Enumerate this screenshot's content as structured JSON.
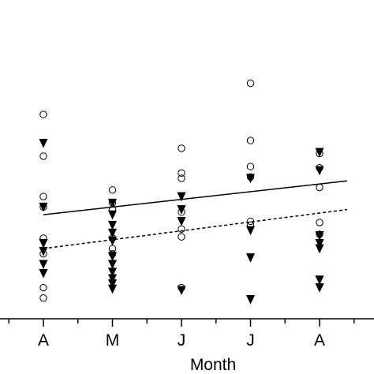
{
  "chart_data": {
    "type": "scatter",
    "title": "",
    "xlabel": "Month",
    "ylabel": "",
    "categories": [
      "A",
      "M",
      "J",
      "J",
      "A"
    ],
    "xlim": [
      -0.5,
      4.4
    ],
    "ylim": [
      0.5,
      11.0
    ],
    "grid": false,
    "series": [
      {
        "marker": "open-circle",
        "points": [
          {
            "x": 0,
            "y": 8.5
          },
          {
            "x": 0,
            "y": 6.9
          },
          {
            "x": 0,
            "y": 5.35
          },
          {
            "x": 0,
            "y": 4.95
          },
          {
            "x": 0,
            "y": 3.75
          },
          {
            "x": 0,
            "y": 3.15
          },
          {
            "x": 0,
            "y": 1.85
          },
          {
            "x": 0,
            "y": 1.45
          },
          {
            "x": 1,
            "y": 5.6
          },
          {
            "x": 1,
            "y": 5.1
          },
          {
            "x": 1,
            "y": 4.85
          },
          {
            "x": 1,
            "y": 3.75
          },
          {
            "x": 1,
            "y": 3.35
          },
          {
            "x": 1,
            "y": 3.15
          },
          {
            "x": 2,
            "y": 7.2
          },
          {
            "x": 2,
            "y": 6.25
          },
          {
            "x": 2,
            "y": 6.05
          },
          {
            "x": 2,
            "y": 4.75
          },
          {
            "x": 2,
            "y": 4.1
          },
          {
            "x": 2,
            "y": 3.8
          },
          {
            "x": 2,
            "y": 1.85
          },
          {
            "x": 3,
            "y": 9.7
          },
          {
            "x": 3,
            "y": 7.5
          },
          {
            "x": 3,
            "y": 6.5
          },
          {
            "x": 3,
            "y": 6.1
          },
          {
            "x": 3,
            "y": 4.4
          },
          {
            "x": 3,
            "y": 4.25
          },
          {
            "x": 4,
            "y": 7.0
          },
          {
            "x": 4,
            "y": 6.45
          },
          {
            "x": 4,
            "y": 5.7
          },
          {
            "x": 4,
            "y": 4.35
          },
          {
            "x": 4,
            "y": 3.9
          }
        ]
      },
      {
        "marker": "filled-triangle-down",
        "points": [
          {
            "x": 0,
            "y": 7.4
          },
          {
            "x": 0,
            "y": 4.95
          },
          {
            "x": 0,
            "y": 3.55
          },
          {
            "x": 0,
            "y": 3.25
          },
          {
            "x": 0,
            "y": 2.75
          },
          {
            "x": 0,
            "y": 2.4
          },
          {
            "x": 1,
            "y": 5.1
          },
          {
            "x": 1,
            "y": 4.65
          },
          {
            "x": 1,
            "y": 4.25
          },
          {
            "x": 1,
            "y": 3.95
          },
          {
            "x": 1,
            "y": 3.65
          },
          {
            "x": 1,
            "y": 3.05
          },
          {
            "x": 1,
            "y": 2.75
          },
          {
            "x": 1,
            "y": 2.45
          },
          {
            "x": 1,
            "y": 2.2
          },
          {
            "x": 1,
            "y": 2.0
          },
          {
            "x": 1,
            "y": 1.8
          },
          {
            "x": 2,
            "y": 5.35
          },
          {
            "x": 2,
            "y": 4.85
          },
          {
            "x": 2,
            "y": 4.4
          },
          {
            "x": 2,
            "y": 1.75
          },
          {
            "x": 3,
            "y": 6.05
          },
          {
            "x": 3,
            "y": 4.05
          },
          {
            "x": 3,
            "y": 3.0
          },
          {
            "x": 3,
            "y": 1.4
          },
          {
            "x": 4,
            "y": 7.05
          },
          {
            "x": 4,
            "y": 6.35
          },
          {
            "x": 4,
            "y": 3.85
          },
          {
            "x": 4,
            "y": 3.55
          },
          {
            "x": 4,
            "y": 3.35
          },
          {
            "x": 4,
            "y": 2.15
          },
          {
            "x": 4,
            "y": 1.85
          }
        ]
      }
    ],
    "trend_lines": [
      {
        "style": "solid",
        "x": [
          0,
          4.4
        ],
        "y": [
          4.65,
          5.95
        ]
      },
      {
        "style": "dashed",
        "x": [
          0,
          4.4
        ],
        "y": [
          3.35,
          4.85
        ]
      }
    ]
  }
}
